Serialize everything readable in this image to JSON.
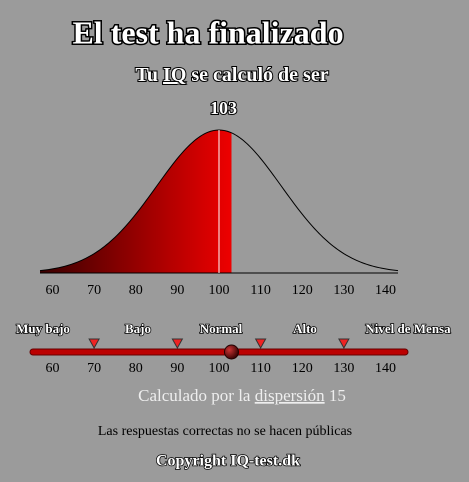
{
  "header": {
    "title": "El test ha finalizado",
    "subtitle": {
      "before": "Tu",
      "link": "IQ",
      "after": "se calculó de ser"
    },
    "score": 103
  },
  "curve": {
    "xlim": [
      57,
      143
    ],
    "xticks": [
      60,
      70,
      80,
      90,
      100,
      110,
      120,
      130,
      140
    ],
    "mean": 100
  },
  "scale": {
    "labels": [
      "Muy bajo",
      "Bajo",
      "Normal",
      "Alto",
      "Nivel de Mensa"
    ],
    "thresholds": [
      70,
      90,
      110,
      130
    ],
    "xticks": [
      60,
      70,
      80,
      90,
      100,
      110,
      120,
      130,
      140
    ]
  },
  "footer": {
    "calc_before": "Calculado por la",
    "calc_link": "dispersión",
    "sd": 15,
    "note": "Las respuestas correctas no se hacen públicas",
    "copyright": "Copyright IQ-test.dk"
  }
}
